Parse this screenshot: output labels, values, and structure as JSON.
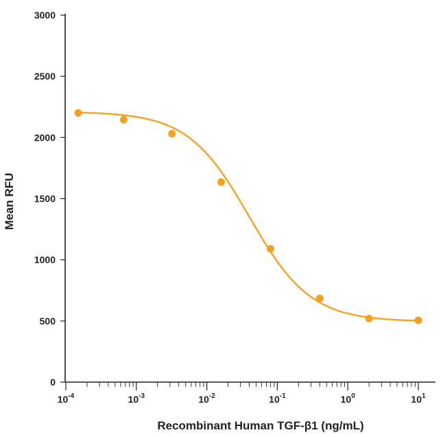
{
  "chart_data": {
    "type": "line",
    "title": "",
    "xlabel": "Recombinant Human TGF-β1 (ng/mL)",
    "ylabel": "Mean RFU",
    "x_scale": "log",
    "xlim": [
      0.0001,
      10
    ],
    "ylim": [
      0,
      3000
    ],
    "x_ticks": [
      {
        "value": 0.0001,
        "base": "10",
        "exp": "-4"
      },
      {
        "value": 0.001,
        "base": "10",
        "exp": "-3"
      },
      {
        "value": 0.01,
        "base": "10",
        "exp": "-2"
      },
      {
        "value": 0.1,
        "base": "10",
        "exp": "-1"
      },
      {
        "value": 1,
        "base": "10",
        "exp": "0"
      },
      {
        "value": 10,
        "base": "10",
        "exp": "1"
      }
    ],
    "y_ticks": [
      0,
      500,
      1000,
      1500,
      2000,
      2500,
      3000
    ],
    "grid": false,
    "legend": "none",
    "color": "#F5A11E",
    "series": [
      {
        "x": [
          0.00015,
          0.00066,
          0.0032,
          0.016,
          0.08,
          0.4,
          2,
          10
        ],
        "y": [
          2200,
          2145,
          2030,
          1635,
          1090,
          685,
          520,
          505
        ]
      }
    ],
    "fit": {
      "type": "four-parameter logistic",
      "top": 2210,
      "bottom": 495,
      "ec50": 0.04,
      "hill": 1.0
    }
  }
}
